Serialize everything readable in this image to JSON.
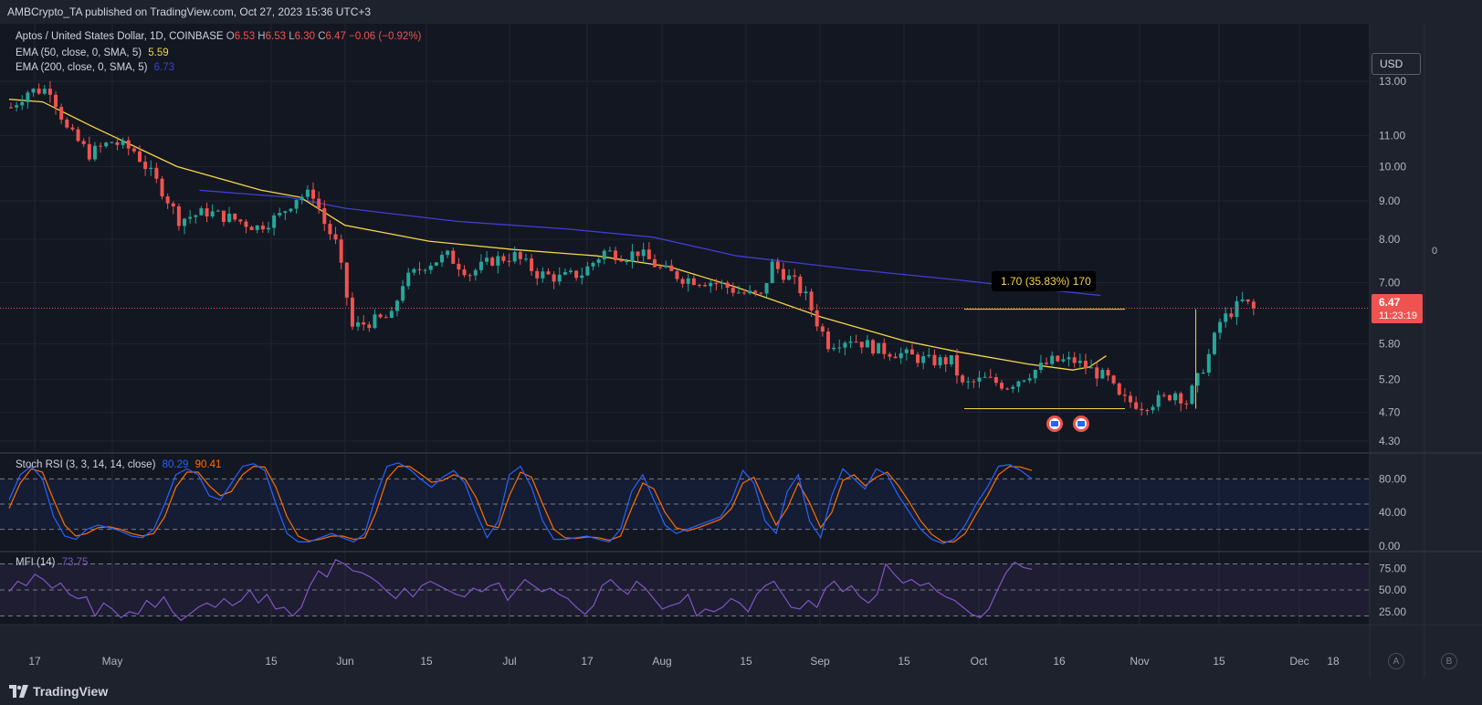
{
  "header": {
    "published_text": "AMBCrypto_TA published on TradingView.com, Oct 27, 2023 15:36 UTC+3"
  },
  "legend": {
    "symbol": "Aptos / United States Dollar, 1D, COINBASE",
    "o_label": "O",
    "o_value": "6.53",
    "h_label": "H",
    "h_value": "6.53",
    "l_label": "L",
    "l_value": "6.30",
    "c_label": "C",
    "c_value": "6.47",
    "change": "−0.06 (−0.92%)",
    "ema50_label": "EMA (50, close, 0, SMA, 5)",
    "ema50_value": "5.59",
    "ema200_label": "EMA (200, close, 0, SMA, 5)",
    "ema200_value": "6.73",
    "stoch_label": "Stoch RSI (3, 3, 14, 14, close)",
    "stoch_k": "80.29",
    "stoch_d": "90.41",
    "mfi_label": "MFI (14)",
    "mfi_value": "73.75"
  },
  "currency_button": "USD",
  "price_tag": {
    "value": "6.47",
    "countdown": "11:23:19"
  },
  "measure_label": "1.70 (35.83%) 170",
  "side_value": "0",
  "buttons": {
    "a": "A",
    "b": "B"
  },
  "footer": {
    "brand": "TradingView"
  },
  "colors": {
    "up": "#26a69a",
    "down": "#ef5350",
    "ema50": "#f5d547",
    "ema200": "#3f3fd1",
    "stoch_k": "#2962ff",
    "stoch_d": "#ff6d00",
    "mfi": "#7e57c2",
    "bg": "#131722"
  },
  "chart_data": [
    {
      "type": "candlestick",
      "title": "Aptos / United States Dollar, 1D, COINBASE",
      "y_scale": "log",
      "y_ticks": [
        "13.00",
        "11.00",
        "10.00",
        "9.00",
        "8.00",
        "7.00",
        "6.47",
        "5.80",
        "5.20",
        "4.70",
        "4.30"
      ],
      "x_ticks": [
        "17",
        "May",
        "15",
        "Jun",
        "15",
        "Jul",
        "17",
        "Aug",
        "15",
        "Sep",
        "15",
        "Oct",
        "16",
        "Nov",
        "15",
        "Dec",
        "18"
      ],
      "date_range": [
        "2023-04-13",
        "2023-10-27"
      ],
      "last_close": 6.47,
      "series": [
        {
          "name": "EMA (50, close, 0, SMA, 5)",
          "values": [
            [
              0,
              12.3
            ],
            [
              6,
              12.2
            ],
            [
              15,
              11.3
            ],
            [
              30,
              10.0
            ],
            [
              45,
              9.3
            ],
            [
              52,
              9.1
            ],
            [
              60,
              8.35
            ],
            [
              75,
              7.95
            ],
            [
              90,
              7.75
            ],
            [
              105,
              7.6
            ],
            [
              118,
              7.35
            ],
            [
              130,
              6.9
            ],
            [
              145,
              6.3
            ],
            [
              160,
              5.85
            ],
            [
              170,
              5.65
            ],
            [
              182,
              5.45
            ],
            [
              190,
              5.35
            ],
            [
              193,
              5.4
            ],
            [
              196,
              5.59
            ]
          ]
        },
        {
          "name": "EMA (200, close, 0, SMA, 5)",
          "values": [
            [
              34,
              9.3
            ],
            [
              50,
              9.1
            ],
            [
              60,
              8.8
            ],
            [
              80,
              8.45
            ],
            [
              100,
              8.25
            ],
            [
              115,
              8.05
            ],
            [
              130,
              7.6
            ],
            [
              150,
              7.3
            ],
            [
              170,
              7.05
            ],
            [
              185,
              6.85
            ],
            [
              195,
              6.73
            ]
          ]
        }
      ],
      "annotations": {
        "measure_range": {
          "low": 4.75,
          "high": 6.45,
          "change": "1.70 (35.83%) 170"
        },
        "price_line": 6.47
      }
    },
    {
      "type": "line",
      "title": "Stoch RSI (3, 3, 14, 14, close)",
      "y_ticks": [
        "80.00",
        "40.00",
        "0.00"
      ],
      "bands": [
        20,
        50,
        80
      ],
      "series": [
        {
          "name": "K",
          "last": 80.29
        },
        {
          "name": "D",
          "last": 90.41
        }
      ],
      "values_k": [
        55,
        85,
        95,
        80,
        35,
        12,
        8,
        20,
        25,
        22,
        18,
        12,
        10,
        20,
        50,
        85,
        92,
        85,
        60,
        55,
        75,
        95,
        98,
        90,
        50,
        15,
        5,
        5,
        10,
        15,
        10,
        5,
        15,
        60,
        95,
        99,
        92,
        80,
        70,
        82,
        90,
        75,
        40,
        10,
        30,
        85,
        95,
        70,
        30,
        8,
        8,
        10,
        12,
        8,
        5,
        20,
        65,
        85,
        55,
        25,
        15,
        20,
        25,
        30,
        35,
        55,
        90,
        75,
        30,
        15,
        65,
        85,
        30,
        10,
        60,
        92,
        80,
        68,
        92,
        85,
        60,
        40,
        20,
        8,
        3,
        8,
        25,
        50,
        70,
        95,
        97,
        90,
        80
      ],
      "values_d": [
        45,
        75,
        92,
        88,
        55,
        25,
        12,
        15,
        22,
        23,
        20,
        15,
        12,
        15,
        35,
        70,
        88,
        88,
        72,
        60,
        65,
        85,
        95,
        94,
        70,
        35,
        12,
        6,
        8,
        12,
        12,
        8,
        10,
        40,
        80,
        95,
        95,
        86,
        76,
        78,
        85,
        80,
        58,
        25,
        22,
        60,
        88,
        82,
        50,
        20,
        10,
        9,
        11,
        10,
        7,
        12,
        45,
        75,
        68,
        40,
        22,
        18,
        22,
        27,
        32,
        45,
        75,
        82,
        52,
        25,
        45,
        75,
        52,
        22,
        40,
        78,
        85,
        72,
        82,
        88,
        72,
        52,
        30,
        14,
        5,
        5,
        15,
        38,
        60,
        85,
        95,
        94,
        90
      ]
    },
    {
      "type": "line",
      "title": "MFI (14)",
      "y_ticks": [
        "75.00",
        "50.00",
        "25.00"
      ],
      "bands": [
        20,
        50,
        80
      ],
      "series": [
        {
          "name": "MFI",
          "last": 73.75
        }
      ],
      "values": [
        48,
        60,
        55,
        68,
        62,
        52,
        58,
        45,
        40,
        42,
        20,
        35,
        28,
        18,
        25,
        22,
        38,
        30,
        42,
        25,
        15,
        22,
        30,
        35,
        30,
        40,
        32,
        38,
        50,
        35,
        45,
        28,
        30,
        20,
        30,
        55,
        72,
        65,
        85,
        80,
        72,
        70,
        65,
        58,
        48,
        40,
        52,
        42,
        55,
        60,
        55,
        50,
        45,
        42,
        52,
        48,
        55,
        58,
        38,
        50,
        62,
        55,
        48,
        52,
        45,
        40,
        30,
        22,
        32,
        55,
        62,
        52,
        45,
        60,
        52,
        40,
        28,
        32,
        35,
        45,
        20,
        28,
        25,
        30,
        40,
        35,
        25,
        45,
        55,
        60,
        45,
        30,
        28,
        38,
        30,
        52,
        60,
        48,
        55,
        42,
        35,
        45,
        80,
        68,
        58,
        62,
        55,
        58,
        48,
        42,
        38,
        30,
        22,
        18,
        28,
        50,
        70,
        82,
        76,
        73.75
      ]
    }
  ]
}
